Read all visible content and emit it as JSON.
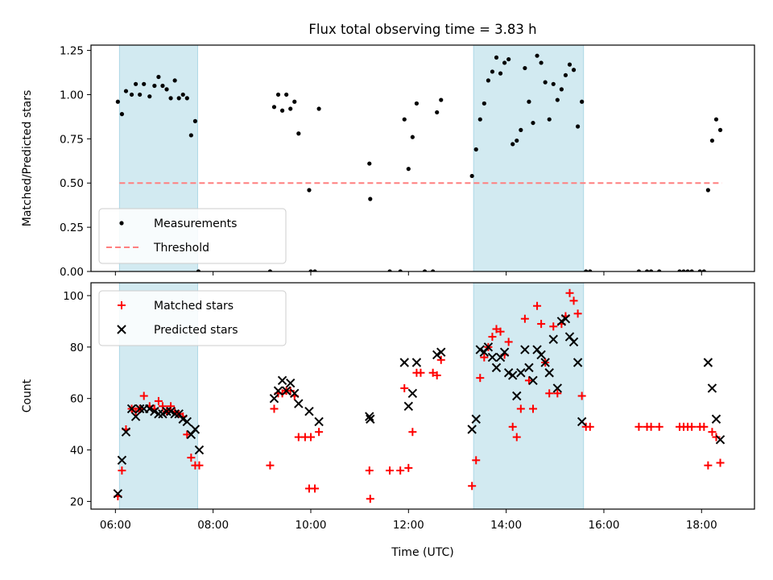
{
  "title": "Flux total observing time = 3.83 h",
  "colors": {
    "band": "#add8e6",
    "threshold": "#ff7f7f",
    "matched": "#ff0000",
    "predicted": "#000000",
    "measure": "#000000"
  },
  "chart_data": [
    {
      "type": "scatter",
      "ylabel": "Matched/Predicted stars",
      "xlim": [
        "05:30",
        "19:05"
      ],
      "ylim": [
        0,
        1.28
      ],
      "yticks": [
        0,
        0.25,
        0.5,
        0.75,
        1.0,
        1.25
      ],
      "ytick_labels": [
        "0.00",
        "0.25",
        "0.50",
        "0.75",
        "1.00",
        "1.25"
      ],
      "shaded_intervals": [
        [
          "06:05",
          "07:41"
        ],
        [
          "13:20",
          "15:35"
        ]
      ],
      "legend_position": "lower-left",
      "legend": [
        "Measurements",
        "Threshold"
      ],
      "threshold": {
        "name": "Threshold",
        "value": 0.5,
        "x": [
          "06:05",
          "18:25"
        ]
      },
      "series": [
        {
          "name": "Measurements",
          "points": [
            [
              "06:03",
              0.96
            ],
            [
              "06:08",
              0.89
            ],
            [
              "06:13",
              1.02
            ],
            [
              "06:20",
              1.0
            ],
            [
              "06:25",
              1.06
            ],
            [
              "06:30",
              1.0
            ],
            [
              "06:35",
              1.06
            ],
            [
              "06:42",
              0.99
            ],
            [
              "06:48",
              1.05
            ],
            [
              "06:53",
              1.1
            ],
            [
              "06:58",
              1.05
            ],
            [
              "07:03",
              1.03
            ],
            [
              "07:08",
              0.98
            ],
            [
              "07:13",
              1.08
            ],
            [
              "07:18",
              0.98
            ],
            [
              "07:23",
              1.0
            ],
            [
              "07:28",
              0.98
            ],
            [
              "07:33",
              0.77
            ],
            [
              "07:38",
              0.85
            ],
            [
              "07:42",
              0.0
            ],
            [
              "09:10",
              0.0
            ],
            [
              "09:15",
              0.93
            ],
            [
              "09:20",
              1.0
            ],
            [
              "09:25",
              0.91
            ],
            [
              "09:30",
              1.0
            ],
            [
              "09:35",
              0.92
            ],
            [
              "09:40",
              0.96
            ],
            [
              "09:45",
              0.78
            ],
            [
              "09:58",
              0.46
            ],
            [
              "10:00",
              0.0
            ],
            [
              "10:05",
              0.0
            ],
            [
              "10:10",
              0.92
            ],
            [
              "11:12",
              0.61
            ],
            [
              "11:13",
              0.41
            ],
            [
              "11:37",
              0.0
            ],
            [
              "11:50",
              0.0
            ],
            [
              "11:55",
              0.86
            ],
            [
              "12:00",
              0.58
            ],
            [
              "12:05",
              0.76
            ],
            [
              "12:10",
              0.95
            ],
            [
              "12:20",
              0.0
            ],
            [
              "12:30",
              0.0
            ],
            [
              "12:35",
              0.9
            ],
            [
              "12:40",
              0.97
            ],
            [
              "13:18",
              0.54
            ],
            [
              "13:23",
              0.69
            ],
            [
              "13:28",
              0.86
            ],
            [
              "13:33",
              0.95
            ],
            [
              "13:38",
              1.08
            ],
            [
              "13:43",
              1.13
            ],
            [
              "13:48",
              1.21
            ],
            [
              "13:53",
              1.12
            ],
            [
              "13:58",
              1.18
            ],
            [
              "14:03",
              1.2
            ],
            [
              "14:08",
              0.72
            ],
            [
              "14:13",
              0.74
            ],
            [
              "14:18",
              0.8
            ],
            [
              "14:23",
              1.15
            ],
            [
              "14:28",
              0.96
            ],
            [
              "14:33",
              0.84
            ],
            [
              "14:38",
              1.22
            ],
            [
              "14:43",
              1.18
            ],
            [
              "14:48",
              1.07
            ],
            [
              "14:53",
              0.86
            ],
            [
              "14:58",
              1.06
            ],
            [
              "15:03",
              0.97
            ],
            [
              "15:08",
              1.03
            ],
            [
              "15:13",
              1.11
            ],
            [
              "15:18",
              1.17
            ],
            [
              "15:23",
              1.14
            ],
            [
              "15:28",
              0.82
            ],
            [
              "15:33",
              0.96
            ],
            [
              "15:38",
              0.0
            ],
            [
              "15:43",
              0.0
            ],
            [
              "16:43",
              0.0
            ],
            [
              "16:53",
              0.0
            ],
            [
              "16:58",
              0.0
            ],
            [
              "17:08",
              0.0
            ],
            [
              "17:33",
              0.0
            ],
            [
              "17:38",
              0.0
            ],
            [
              "17:43",
              0.0
            ],
            [
              "17:48",
              0.0
            ],
            [
              "17:58",
              0.0
            ],
            [
              "18:03",
              0.0
            ],
            [
              "18:08",
              0.46
            ],
            [
              "18:13",
              0.74
            ],
            [
              "18:18",
              0.86
            ],
            [
              "18:23",
              0.8
            ]
          ]
        }
      ]
    },
    {
      "type": "scatter",
      "xlabel": "Time (UTC)",
      "ylabel": "Count",
      "xlim": [
        "05:30",
        "19:05"
      ],
      "ylim": [
        17,
        105
      ],
      "yticks": [
        20,
        40,
        60,
        80,
        100
      ],
      "xticks": [
        "06:00",
        "08:00",
        "10:00",
        "12:00",
        "14:00",
        "16:00",
        "18:00"
      ],
      "shaded_intervals": [
        [
          "06:05",
          "07:41"
        ],
        [
          "13:20",
          "15:35"
        ]
      ],
      "legend_position": "upper-left",
      "legend": [
        "Matched stars",
        "Predicted stars"
      ],
      "series": [
        {
          "name": "Matched stars",
          "marker": "plus",
          "points": [
            [
              "06:03",
              22
            ],
            [
              "06:08",
              32
            ],
            [
              "06:13",
              48
            ],
            [
              "06:20",
              56
            ],
            [
              "06:25",
              55
            ],
            [
              "06:30",
              56
            ],
            [
              "06:35",
              61
            ],
            [
              "06:42",
              57
            ],
            [
              "06:48",
              56
            ],
            [
              "06:53",
              59
            ],
            [
              "06:58",
              57
            ],
            [
              "07:03",
              55
            ],
            [
              "07:08",
              57
            ],
            [
              "07:13",
              55
            ],
            [
              "07:18",
              54
            ],
            [
              "07:23",
              53
            ],
            [
              "07:28",
              46
            ],
            [
              "07:33",
              37
            ],
            [
              "07:38",
              34
            ],
            [
              "07:43",
              34
            ],
            [
              "09:10",
              34
            ],
            [
              "09:15",
              56
            ],
            [
              "09:20",
              62
            ],
            [
              "09:25",
              62
            ],
            [
              "09:30",
              63
            ],
            [
              "09:35",
              63
            ],
            [
              "09:40",
              61
            ],
            [
              "09:45",
              45
            ],
            [
              "09:53",
              45
            ],
            [
              "09:58",
              25
            ],
            [
              "10:00",
              45
            ],
            [
              "10:05",
              25
            ],
            [
              "10:10",
              47
            ],
            [
              "11:12",
              32
            ],
            [
              "11:13",
              21
            ],
            [
              "11:37",
              32
            ],
            [
              "11:50",
              32
            ],
            [
              "11:55",
              64
            ],
            [
              "12:00",
              33
            ],
            [
              "12:05",
              47
            ],
            [
              "12:10",
              70
            ],
            [
              "12:15",
              70
            ],
            [
              "12:30",
              70
            ],
            [
              "12:35",
              69
            ],
            [
              "12:40",
              75
            ],
            [
              "13:18",
              26
            ],
            [
              "13:23",
              36
            ],
            [
              "13:28",
              68
            ],
            [
              "13:33",
              76
            ],
            [
              "13:38",
              80
            ],
            [
              "13:43",
              84
            ],
            [
              "13:48",
              87
            ],
            [
              "13:53",
              86
            ],
            [
              "13:58",
              77
            ],
            [
              "14:03",
              82
            ],
            [
              "14:08",
              49
            ],
            [
              "14:13",
              45
            ],
            [
              "14:18",
              56
            ],
            [
              "14:23",
              91
            ],
            [
              "14:28",
              67
            ],
            [
              "14:33",
              56
            ],
            [
              "14:38",
              96
            ],
            [
              "14:43",
              89
            ],
            [
              "14:48",
              74
            ],
            [
              "14:53",
              62
            ],
            [
              "14:58",
              88
            ],
            [
              "15:03",
              62
            ],
            [
              "15:08",
              89
            ],
            [
              "15:13",
              92
            ],
            [
              "15:18",
              101
            ],
            [
              "15:23",
              98
            ],
            [
              "15:28",
              93
            ],
            [
              "15:33",
              61
            ],
            [
              "15:38",
              49
            ],
            [
              "15:43",
              49
            ],
            [
              "16:43",
              49
            ],
            [
              "16:53",
              49
            ],
            [
              "16:58",
              49
            ],
            [
              "17:08",
              49
            ],
            [
              "17:33",
              49
            ],
            [
              "17:38",
              49
            ],
            [
              "17:43",
              49
            ],
            [
              "17:48",
              49
            ],
            [
              "17:58",
              49
            ],
            [
              "18:03",
              49
            ],
            [
              "18:08",
              34
            ],
            [
              "18:13",
              47
            ],
            [
              "18:18",
              45
            ],
            [
              "18:23",
              35
            ]
          ]
        },
        {
          "name": "Predicted stars",
          "marker": "x",
          "points": [
            [
              "06:03",
              23
            ],
            [
              "06:08",
              36
            ],
            [
              "06:13",
              47
            ],
            [
              "06:20",
              56
            ],
            [
              "06:25",
              53
            ],
            [
              "06:30",
              56
            ],
            [
              "06:35",
              56
            ],
            [
              "06:42",
              56
            ],
            [
              "06:48",
              55
            ],
            [
              "06:53",
              54
            ],
            [
              "06:58",
              54
            ],
            [
              "07:03",
              55
            ],
            [
              "07:08",
              55
            ],
            [
              "07:13",
              54
            ],
            [
              "07:18",
              54
            ],
            [
              "07:23",
              52
            ],
            [
              "07:28",
              51
            ],
            [
              "07:33",
              46
            ],
            [
              "07:38",
              48
            ],
            [
              "07:43",
              40
            ],
            [
              "09:15",
              60
            ],
            [
              "09:20",
              63
            ],
            [
              "09:25",
              67
            ],
            [
              "09:30",
              63
            ],
            [
              "09:35",
              66
            ],
            [
              "09:40",
              62
            ],
            [
              "09:45",
              58
            ],
            [
              "09:58",
              55
            ],
            [
              "10:10",
              51
            ],
            [
              "11:12",
              53
            ],
            [
              "11:13",
              52
            ],
            [
              "11:55",
              74
            ],
            [
              "12:00",
              57
            ],
            [
              "12:05",
              62
            ],
            [
              "12:10",
              74
            ],
            [
              "12:35",
              77
            ],
            [
              "12:40",
              78
            ],
            [
              "13:18",
              48
            ],
            [
              "13:23",
              52
            ],
            [
              "13:28",
              79
            ],
            [
              "13:33",
              78
            ],
            [
              "13:38",
              80
            ],
            [
              "13:43",
              76
            ],
            [
              "13:48",
              72
            ],
            [
              "13:53",
              76
            ],
            [
              "13:58",
              78
            ],
            [
              "14:03",
              70
            ],
            [
              "14:08",
              69
            ],
            [
              "14:13",
              61
            ],
            [
              "14:18",
              70
            ],
            [
              "14:23",
              79
            ],
            [
              "14:28",
              72
            ],
            [
              "14:33",
              67
            ],
            [
              "14:38",
              79
            ],
            [
              "14:43",
              77
            ],
            [
              "14:48",
              74
            ],
            [
              "14:53",
              70
            ],
            [
              "14:58",
              83
            ],
            [
              "15:03",
              64
            ],
            [
              "15:08",
              90
            ],
            [
              "15:13",
              91
            ],
            [
              "15:18",
              84
            ],
            [
              "15:23",
              82
            ],
            [
              "15:28",
              74
            ],
            [
              "15:33",
              51
            ],
            [
              "18:08",
              74
            ],
            [
              "18:13",
              64
            ],
            [
              "18:18",
              52
            ],
            [
              "18:23",
              44
            ]
          ]
        }
      ]
    }
  ]
}
